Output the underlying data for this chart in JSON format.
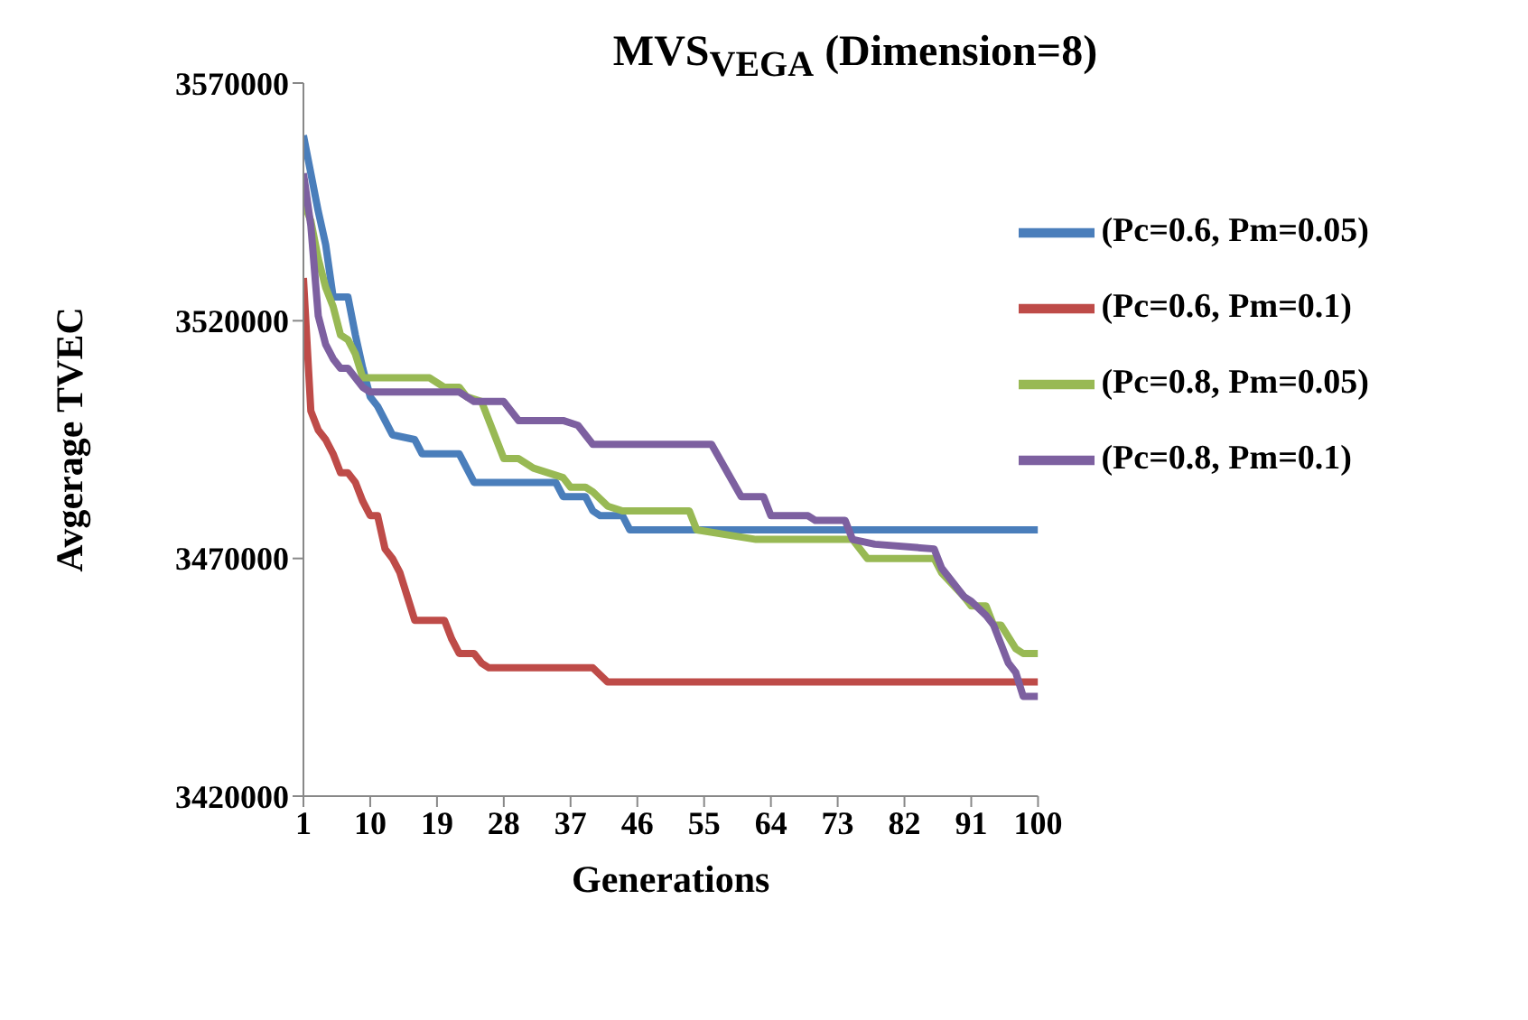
{
  "chart_data": {
    "type": "line",
    "title": "MVS$_{VEGA}$ (Dimension=8)",
    "xlabel": "Generations",
    "ylabel": "Avgerage TVEC",
    "xlim": [
      1,
      100
    ],
    "xticks": [
      1,
      10,
      19,
      28,
      37,
      46,
      55,
      64,
      73,
      82,
      91,
      100
    ],
    "ylim": [
      3420000,
      3570000
    ],
    "yticks": [
      3420000,
      3470000,
      3520000,
      3570000
    ],
    "grid": false,
    "legend": "top right",
    "marker": "none",
    "line_style": "solid",
    "series": [
      {
        "name": "(Pc=0.6, Pm=0.05)",
        "color": "#4a7ebb",
        "x": [
          1,
          3,
          4,
          5,
          7,
          8,
          9,
          10,
          11,
          12,
          13,
          16,
          17,
          22,
          23,
          24,
          35,
          36,
          39,
          40,
          41,
          44,
          45,
          100
        ],
        "values": [
          3559000,
          3543000,
          3536000,
          3525000,
          3525000,
          3517000,
          3510000,
          3504000,
          3502000,
          3499000,
          3496000,
          3495000,
          3492000,
          3492000,
          3489000,
          3486000,
          3486000,
          3483000,
          3483000,
          3480000,
          3479000,
          3479000,
          3476000,
          3476000
        ]
      },
      {
        "name": "(Pc=0.6, Pm=0.1)",
        "color": "#be4b48",
        "x": [
          1,
          2,
          3,
          4,
          5,
          6,
          7,
          8,
          9,
          10,
          11,
          12,
          13,
          14,
          15,
          16,
          20,
          21,
          22,
          24,
          25,
          26,
          40,
          42,
          100
        ],
        "values": [
          3529000,
          3501000,
          3497000,
          3495000,
          3492000,
          3488000,
          3488000,
          3486000,
          3482000,
          3479000,
          3479000,
          3472000,
          3470000,
          3467000,
          3462000,
          3457000,
          3457000,
          3453000,
          3450000,
          3450000,
          3448000,
          3447000,
          3447000,
          3444000,
          3444000
        ]
      },
      {
        "name": "(Pc=0.8, Pm=0.05)",
        "color": "#98b954",
        "x": [
          1,
          2,
          3,
          4,
          5,
          6,
          7,
          8,
          9,
          18,
          20,
          22,
          23,
          25,
          28,
          30,
          32,
          36,
          37,
          39,
          40,
          42,
          44,
          53,
          54,
          58,
          62,
          75,
          77,
          86,
          87,
          90,
          91,
          93,
          94,
          95,
          97,
          98,
          100
        ],
        "values": [
          3545000,
          3541000,
          3533000,
          3527000,
          3523000,
          3517000,
          3516000,
          3513000,
          3508000,
          3508000,
          3506000,
          3506000,
          3504000,
          3503000,
          3491000,
          3491000,
          3489000,
          3487000,
          3485000,
          3485000,
          3484000,
          3481000,
          3480000,
          3480000,
          3476000,
          3475000,
          3474000,
          3474000,
          3470000,
          3470000,
          3467000,
          3462000,
          3460000,
          3460000,
          3456000,
          3456000,
          3451000,
          3450000,
          3450000
        ]
      },
      {
        "name": "(Pc=0.8, Pm=0.1)",
        "color": "#7d60a0",
        "x": [
          1,
          2,
          3,
          4,
          5,
          6,
          7,
          8,
          9,
          10,
          22,
          24,
          28,
          30,
          36,
          38,
          40,
          56,
          60,
          63,
          64,
          69,
          70,
          74,
          75,
          78,
          86,
          87,
          90,
          91,
          93,
          94,
          96,
          97,
          98,
          100
        ],
        "values": [
          3551000,
          3540000,
          3521000,
          3515000,
          3512000,
          3510000,
          3510000,
          3508000,
          3506000,
          3505000,
          3505000,
          3503000,
          3503000,
          3499000,
          3499000,
          3498000,
          3494000,
          3494000,
          3483000,
          3483000,
          3479000,
          3479000,
          3478000,
          3478000,
          3474000,
          3473000,
          3472000,
          3468000,
          3462000,
          3461000,
          3458000,
          3456000,
          3448000,
          3446000,
          3441000,
          3441000
        ]
      }
    ]
  }
}
